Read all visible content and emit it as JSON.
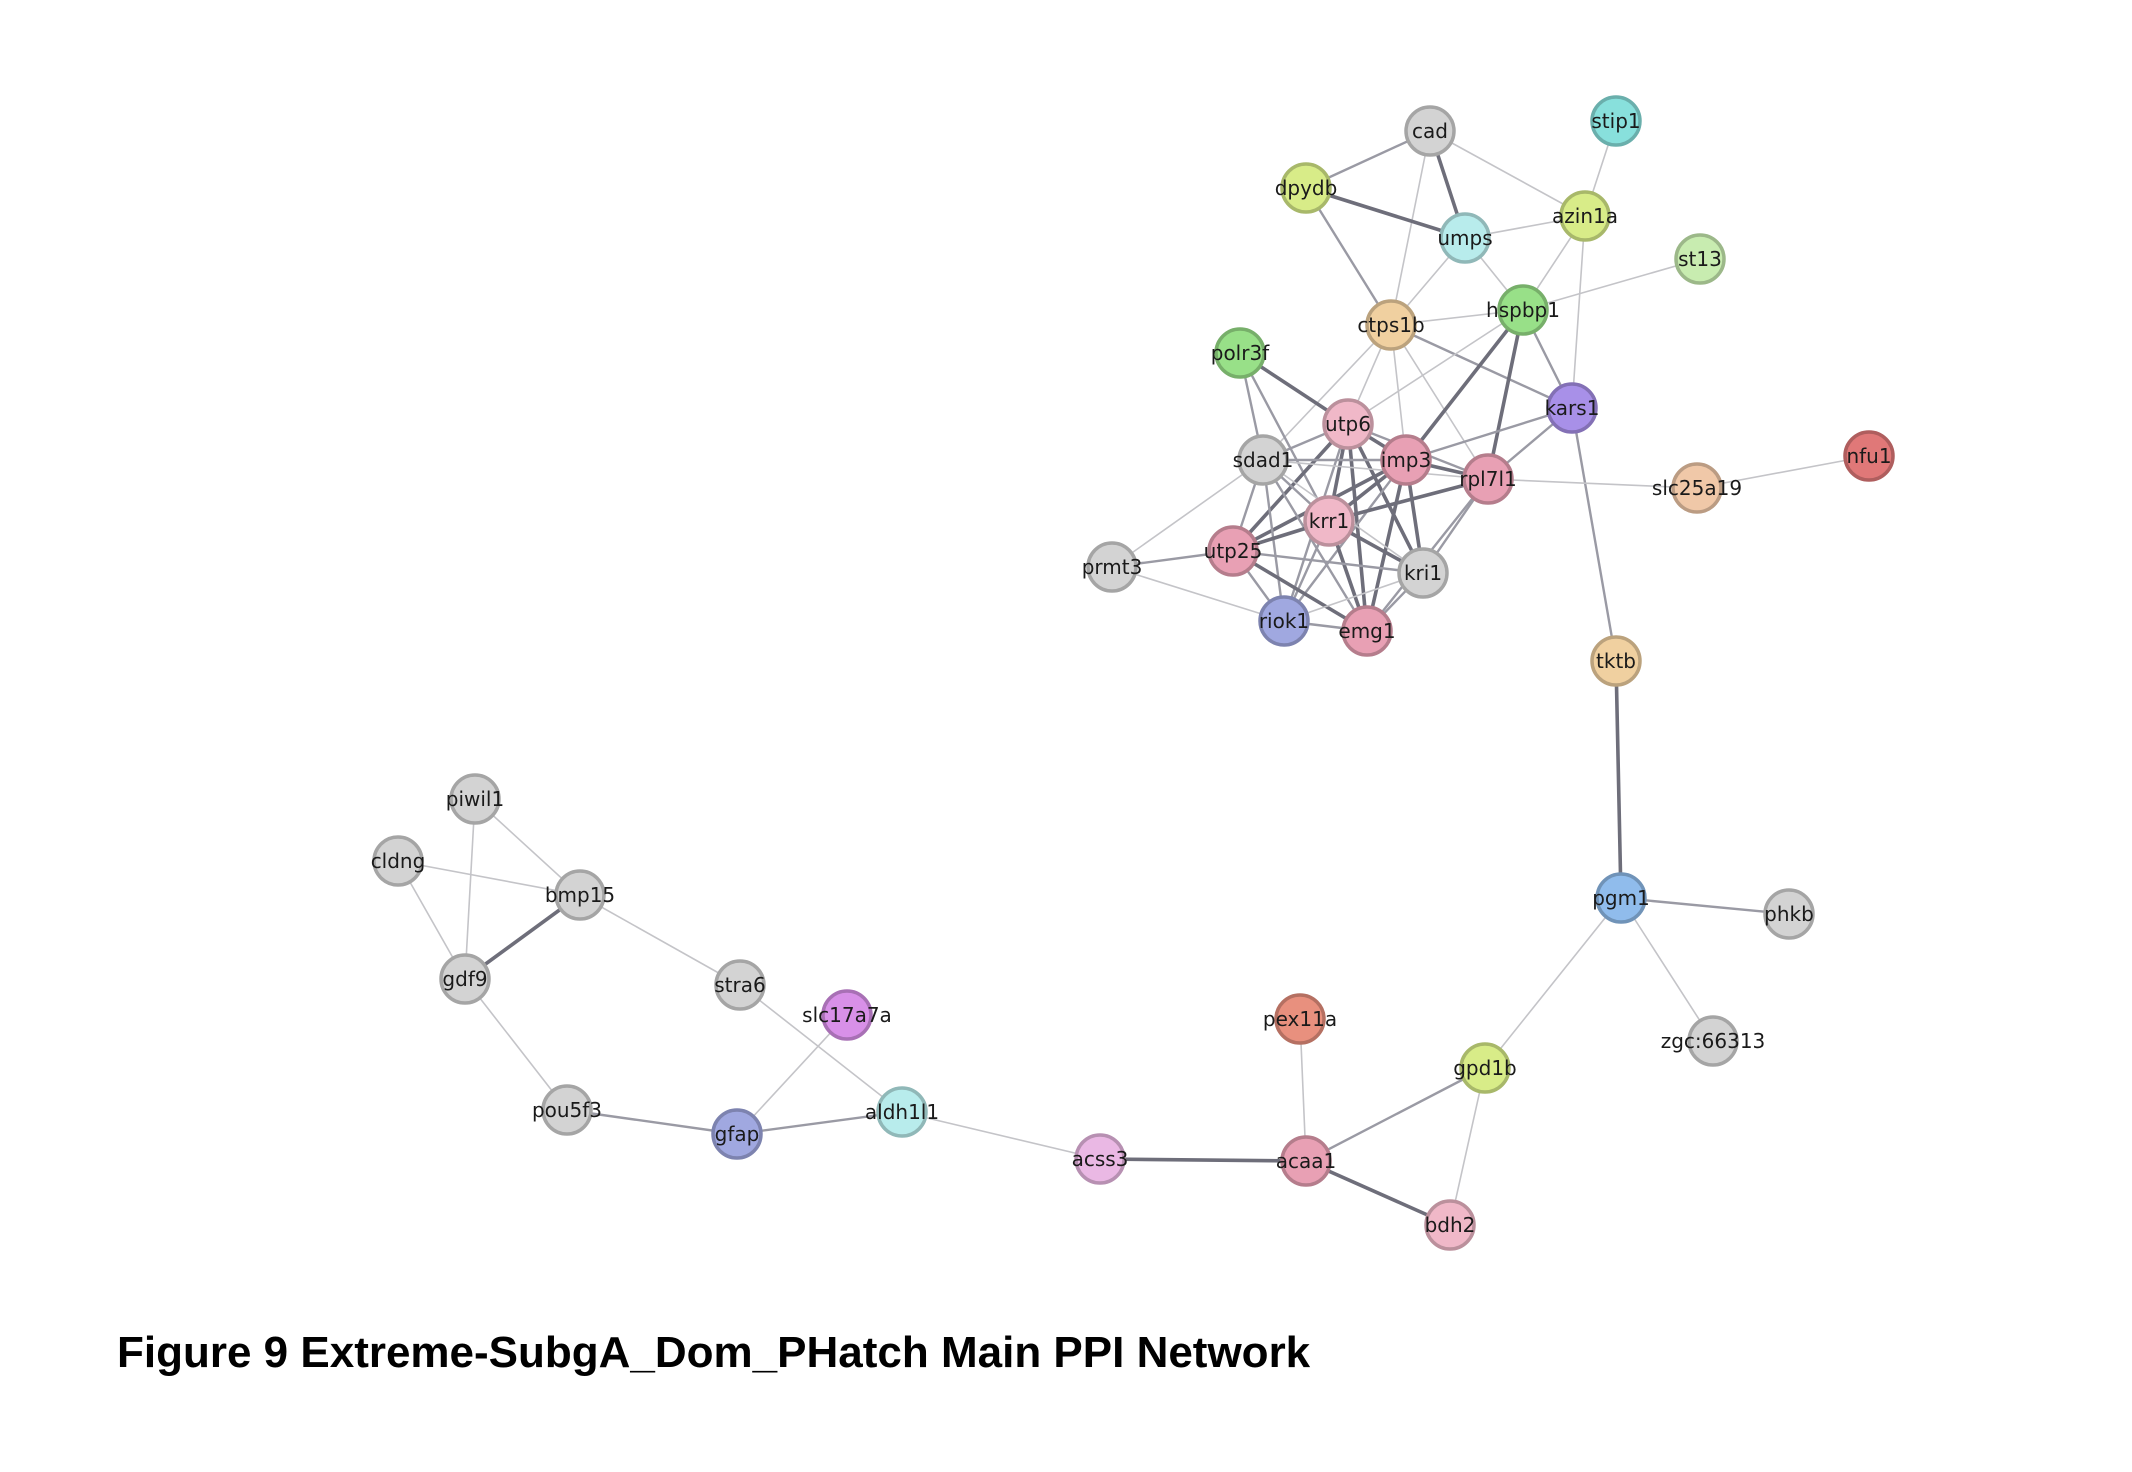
{
  "caption": "Figure 9 Extreme-SubgA_Dom_PHatch Main PPI Network",
  "colors": {
    "gray": "#d3d3d3",
    "pink": "#e8a0b4",
    "light_pink": "#f0b8c8",
    "lavender": "#eab8e4",
    "red": "#e07878",
    "salmon": "#e8907e",
    "peach": "#f0c8a8",
    "tan": "#f0d0a0",
    "yellow_green": "#d8ec88",
    "green": "#98e088",
    "light_green": "#c8ecb0",
    "cyan": "#88e0dc",
    "light_cyan": "#b8ecec",
    "blue": "#90bcec",
    "periwinkle": "#a0a8e0",
    "purple": "#a890e8",
    "violet": "#d890e8",
    "edge_strong": "#6e6e7a",
    "edge_medium": "#9a9aa4",
    "edge_weak": "#c4c4c8"
  },
  "nodes": [
    {
      "id": "cad",
      "label": "cad",
      "color": "gray"
    },
    {
      "id": "stip1",
      "label": "stip1",
      "color": "cyan"
    },
    {
      "id": "dpydb",
      "label": "dpydb",
      "color": "yellow_green"
    },
    {
      "id": "azin1a",
      "label": "azin1a",
      "color": "yellow_green"
    },
    {
      "id": "umps",
      "label": "umps",
      "color": "light_cyan"
    },
    {
      "id": "st13",
      "label": "st13",
      "color": "light_green"
    },
    {
      "id": "hspbp1",
      "label": "hspbp1",
      "color": "green"
    },
    {
      "id": "ctps1b",
      "label": "ctps1b",
      "color": "tan"
    },
    {
      "id": "polr3f",
      "label": "polr3f",
      "color": "green"
    },
    {
      "id": "kars1",
      "label": "kars1",
      "color": "purple"
    },
    {
      "id": "utp6",
      "label": "utp6",
      "color": "light_pink"
    },
    {
      "id": "nfu1",
      "label": "nfu1",
      "color": "red"
    },
    {
      "id": "sdad1",
      "label": "sdad1",
      "color": "gray"
    },
    {
      "id": "imp3",
      "label": "imp3",
      "color": "pink"
    },
    {
      "id": "rpl7l1",
      "label": "rpl7l1",
      "color": "pink"
    },
    {
      "id": "slc25a19",
      "label": "slc25a19",
      "color": "peach"
    },
    {
      "id": "krr1",
      "label": "krr1",
      "color": "light_pink"
    },
    {
      "id": "prmt3",
      "label": "prmt3",
      "color": "gray"
    },
    {
      "id": "utp25",
      "label": "utp25",
      "color": "pink"
    },
    {
      "id": "kri1",
      "label": "kri1",
      "color": "gray"
    },
    {
      "id": "riok1",
      "label": "riok1",
      "color": "periwinkle"
    },
    {
      "id": "emg1",
      "label": "emg1",
      "color": "pink"
    },
    {
      "id": "tktb",
      "label": "tktb",
      "color": "tan"
    },
    {
      "id": "piwil1",
      "label": "piwil1",
      "color": "gray"
    },
    {
      "id": "cldng",
      "label": "cldng",
      "color": "gray"
    },
    {
      "id": "bmp15",
      "label": "bmp15",
      "color": "gray"
    },
    {
      "id": "pgm1",
      "label": "pgm1",
      "color": "blue"
    },
    {
      "id": "phkb",
      "label": "phkb",
      "color": "gray"
    },
    {
      "id": "gdf9",
      "label": "gdf9",
      "color": "gray"
    },
    {
      "id": "stra6",
      "label": "stra6",
      "color": "gray"
    },
    {
      "id": "slc17a7a",
      "label": "slc17a7a",
      "color": "violet"
    },
    {
      "id": "pex11a",
      "label": "pex11a",
      "color": "salmon"
    },
    {
      "id": "zgc66313",
      "label": "zgc:66313",
      "color": "gray"
    },
    {
      "id": "gpd1b",
      "label": "gpd1b",
      "color": "yellow_green"
    },
    {
      "id": "pou5f3",
      "label": "pou5f3",
      "color": "gray"
    },
    {
      "id": "gfap",
      "label": "gfap",
      "color": "periwinkle"
    },
    {
      "id": "aldh1l1",
      "label": "aldh1l1",
      "color": "light_cyan"
    },
    {
      "id": "acss3",
      "label": "acss3",
      "color": "lavender"
    },
    {
      "id": "acaa1",
      "label": "acaa1",
      "color": "pink"
    },
    {
      "id": "bdh2",
      "label": "bdh2",
      "color": "light_pink"
    }
  ],
  "edges": [
    {
      "source": "cad",
      "target": "dpydb",
      "strength": "medium"
    },
    {
      "source": "cad",
      "target": "umps",
      "strength": "strong"
    },
    {
      "source": "cad",
      "target": "azin1a",
      "strength": "weak"
    },
    {
      "source": "cad",
      "target": "ctps1b",
      "strength": "weak"
    },
    {
      "source": "dpydb",
      "target": "umps",
      "strength": "strong"
    },
    {
      "source": "dpydb",
      "target": "ctps1b",
      "strength": "medium"
    },
    {
      "source": "umps",
      "target": "azin1a",
      "strength": "weak"
    },
    {
      "source": "umps",
      "target": "ctps1b",
      "strength": "weak"
    },
    {
      "source": "umps",
      "target": "hspbp1",
      "strength": "weak"
    },
    {
      "source": "stip1",
      "target": "azin1a",
      "strength": "weak"
    },
    {
      "source": "azin1a",
      "target": "hspbp1",
      "strength": "weak"
    },
    {
      "source": "azin1a",
      "target": "kars1",
      "strength": "weak"
    },
    {
      "source": "st13",
      "target": "hspbp1",
      "strength": "weak"
    },
    {
      "source": "ctps1b",
      "target": "hspbp1",
      "strength": "weak"
    },
    {
      "source": "ctps1b",
      "target": "kars1",
      "strength": "medium"
    },
    {
      "source": "ctps1b",
      "target": "imp3",
      "strength": "weak"
    },
    {
      "source": "ctps1b",
      "target": "rpl7l1",
      "strength": "weak"
    },
    {
      "source": "ctps1b",
      "target": "utp6",
      "strength": "weak"
    },
    {
      "source": "ctps1b",
      "target": "sdad1",
      "strength": "weak"
    },
    {
      "source": "hspbp1",
      "target": "kars1",
      "strength": "medium"
    },
    {
      "source": "hspbp1",
      "target": "imp3",
      "strength": "strong"
    },
    {
      "source": "hspbp1",
      "target": "rpl7l1",
      "strength": "strong"
    },
    {
      "source": "hspbp1",
      "target": "utp6",
      "strength": "weak"
    },
    {
      "source": "polr3f",
      "target": "utp6",
      "strength": "strong"
    },
    {
      "source": "polr3f",
      "target": "sdad1",
      "strength": "medium"
    },
    {
      "source": "polr3f",
      "target": "krr1",
      "strength": "medium"
    },
    {
      "source": "kars1",
      "target": "imp3",
      "strength": "medium"
    },
    {
      "source": "kars1",
      "target": "rpl7l1",
      "strength": "medium"
    },
    {
      "source": "kars1",
      "target": "tktb",
      "strength": "medium"
    },
    {
      "source": "nfu1",
      "target": "slc25a19",
      "strength": "weak"
    },
    {
      "source": "rpl7l1",
      "target": "slc25a19",
      "strength": "weak"
    },
    {
      "source": "utp6",
      "target": "imp3",
      "strength": "strong"
    },
    {
      "source": "utp6",
      "target": "sdad1",
      "strength": "medium"
    },
    {
      "source": "utp6",
      "target": "krr1",
      "strength": "strong"
    },
    {
      "source": "utp6",
      "target": "utp25",
      "strength": "strong"
    },
    {
      "source": "utp6",
      "target": "kri1",
      "strength": "strong"
    },
    {
      "source": "utp6",
      "target": "emg1",
      "strength": "strong"
    },
    {
      "source": "utp6",
      "target": "riok1",
      "strength": "medium"
    },
    {
      "source": "utp6",
      "target": "rpl7l1",
      "strength": "medium"
    },
    {
      "source": "imp3",
      "target": "rpl7l1",
      "strength": "strong"
    },
    {
      "source": "imp3",
      "target": "sdad1",
      "strength": "medium"
    },
    {
      "source": "imp3",
      "target": "krr1",
      "strength": "strong"
    },
    {
      "source": "imp3",
      "target": "utp25",
      "strength": "strong"
    },
    {
      "source": "imp3",
      "target": "kri1",
      "strength": "strong"
    },
    {
      "source": "imp3",
      "target": "emg1",
      "strength": "strong"
    },
    {
      "source": "imp3",
      "target": "riok1",
      "strength": "medium"
    },
    {
      "source": "rpl7l1",
      "target": "krr1",
      "strength": "strong"
    },
    {
      "source": "rpl7l1",
      "target": "kri1",
      "strength": "medium"
    },
    {
      "source": "rpl7l1",
      "target": "emg1",
      "strength": "medium"
    },
    {
      "source": "rpl7l1",
      "target": "sdad1",
      "strength": "weak"
    },
    {
      "source": "sdad1",
      "target": "krr1",
      "strength": "medium"
    },
    {
      "source": "sdad1",
      "target": "utp25",
      "strength": "medium"
    },
    {
      "source": "sdad1",
      "target": "riok1",
      "strength": "medium"
    },
    {
      "source": "sdad1",
      "target": "prmt3",
      "strength": "weak"
    },
    {
      "source": "sdad1",
      "target": "kri1",
      "strength": "weak"
    },
    {
      "source": "sdad1",
      "target": "emg1",
      "strength": "medium"
    },
    {
      "source": "krr1",
      "target": "utp25",
      "strength": "strong"
    },
    {
      "source": "krr1",
      "target": "kri1",
      "strength": "strong"
    },
    {
      "source": "krr1",
      "target": "emg1",
      "strength": "strong"
    },
    {
      "source": "krr1",
      "target": "riok1",
      "strength": "medium"
    },
    {
      "source": "prmt3",
      "target": "utp25",
      "strength": "medium"
    },
    {
      "source": "prmt3",
      "target": "riok1",
      "strength": "weak"
    },
    {
      "source": "utp25",
      "target": "kri1",
      "strength": "medium"
    },
    {
      "source": "utp25",
      "target": "emg1",
      "strength": "strong"
    },
    {
      "source": "utp25",
      "target": "riok1",
      "strength": "medium"
    },
    {
      "source": "kri1",
      "target": "emg1",
      "strength": "medium"
    },
    {
      "source": "kri1",
      "target": "riok1",
      "strength": "weak"
    },
    {
      "source": "emg1",
      "target": "riok1",
      "strength": "medium"
    },
    {
      "source": "tktb",
      "target": "pgm1",
      "strength": "strong"
    },
    {
      "source": "pgm1",
      "target": "phkb",
      "strength": "medium"
    },
    {
      "source": "pgm1",
      "target": "zgc66313",
      "strength": "weak"
    },
    {
      "source": "pgm1",
      "target": "gpd1b",
      "strength": "weak"
    },
    {
      "source": "gpd1b",
      "target": "acaa1",
      "strength": "medium"
    },
    {
      "source": "gpd1b",
      "target": "bdh2",
      "strength": "weak"
    },
    {
      "source": "acaa1",
      "target": "bdh2",
      "strength": "strong"
    },
    {
      "source": "acaa1",
      "target": "pex11a",
      "strength": "weak"
    },
    {
      "source": "acaa1",
      "target": "acss3",
      "strength": "strong"
    },
    {
      "source": "acss3",
      "target": "aldh1l1",
      "strength": "weak"
    },
    {
      "source": "aldh1l1",
      "target": "gfap",
      "strength": "medium"
    },
    {
      "source": "aldh1l1",
      "target": "stra6",
      "strength": "weak"
    },
    {
      "source": "gfap",
      "target": "slc17a7a",
      "strength": "weak"
    },
    {
      "source": "gfap",
      "target": "pou5f3",
      "strength": "medium"
    },
    {
      "source": "pou5f3",
      "target": "gdf9",
      "strength": "weak"
    },
    {
      "source": "gdf9",
      "target": "bmp15",
      "strength": "strong"
    },
    {
      "source": "gdf9",
      "target": "piwil1",
      "strength": "weak"
    },
    {
      "source": "gdf9",
      "target": "cldng",
      "strength": "weak"
    },
    {
      "source": "bmp15",
      "target": "piwil1",
      "strength": "weak"
    },
    {
      "source": "bmp15",
      "target": "cldng",
      "strength": "weak"
    },
    {
      "source": "bmp15",
      "target": "stra6",
      "strength": "weak"
    }
  ]
}
